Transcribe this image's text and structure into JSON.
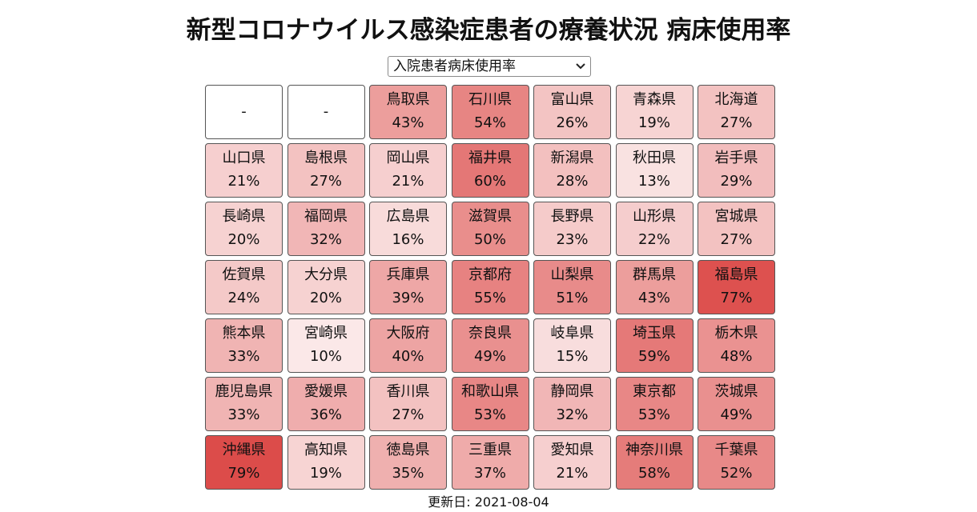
{
  "title": "新型コロナウイルス感染症患者の療養状況 病床使用率",
  "selector": {
    "selected": "入院患者病床使用率"
  },
  "colors": {
    "max": "#dc4c4a",
    "zero": "#ffffff",
    "border": "#555555"
  },
  "tiles": [
    {
      "name": "-",
      "rate": ""
    },
    {
      "name": "-",
      "rate": ""
    },
    {
      "name": "鳥取県",
      "rate": "43%"
    },
    {
      "name": "石川県",
      "rate": "54%"
    },
    {
      "name": "富山県",
      "rate": "26%"
    },
    {
      "name": "青森県",
      "rate": "19%"
    },
    {
      "name": "北海道",
      "rate": "27%"
    },
    {
      "name": "山口県",
      "rate": "21%"
    },
    {
      "name": "島根県",
      "rate": "27%"
    },
    {
      "name": "岡山県",
      "rate": "21%"
    },
    {
      "name": "福井県",
      "rate": "60%"
    },
    {
      "name": "新潟県",
      "rate": "28%"
    },
    {
      "name": "秋田県",
      "rate": "13%"
    },
    {
      "name": "岩手県",
      "rate": "29%"
    },
    {
      "name": "長崎県",
      "rate": "20%"
    },
    {
      "name": "福岡県",
      "rate": "32%"
    },
    {
      "name": "広島県",
      "rate": "16%"
    },
    {
      "name": "滋賀県",
      "rate": "50%"
    },
    {
      "name": "長野県",
      "rate": "23%"
    },
    {
      "name": "山形県",
      "rate": "22%"
    },
    {
      "name": "宮城県",
      "rate": "27%"
    },
    {
      "name": "佐賀県",
      "rate": "24%"
    },
    {
      "name": "大分県",
      "rate": "20%"
    },
    {
      "name": "兵庫県",
      "rate": "39%"
    },
    {
      "name": "京都府",
      "rate": "55%"
    },
    {
      "name": "山梨県",
      "rate": "51%"
    },
    {
      "name": "群馬県",
      "rate": "43%"
    },
    {
      "name": "福島県",
      "rate": "77%"
    },
    {
      "name": "熊本県",
      "rate": "33%"
    },
    {
      "name": "宮崎県",
      "rate": "10%"
    },
    {
      "name": "大阪府",
      "rate": "40%"
    },
    {
      "name": "奈良県",
      "rate": "49%"
    },
    {
      "name": "岐阜県",
      "rate": "15%"
    },
    {
      "name": "埼玉県",
      "rate": "59%"
    },
    {
      "name": "栃木県",
      "rate": "48%"
    },
    {
      "name": "鹿児島県",
      "rate": "33%"
    },
    {
      "name": "愛媛県",
      "rate": "36%"
    },
    {
      "name": "香川県",
      "rate": "27%"
    },
    {
      "name": "和歌山県",
      "rate": "53%"
    },
    {
      "name": "静岡県",
      "rate": "32%"
    },
    {
      "name": "東京都",
      "rate": "53%"
    },
    {
      "name": "茨城県",
      "rate": "49%"
    },
    {
      "name": "沖縄県",
      "rate": "79%"
    },
    {
      "name": "高知県",
      "rate": "19%"
    },
    {
      "name": "徳島県",
      "rate": "35%"
    },
    {
      "name": "三重県",
      "rate": "37%"
    },
    {
      "name": "愛知県",
      "rate": "21%"
    },
    {
      "name": "神奈川県",
      "rate": "58%"
    },
    {
      "name": "千葉県",
      "rate": "52%"
    }
  ],
  "updated": "更新日: 2021-08-04"
}
